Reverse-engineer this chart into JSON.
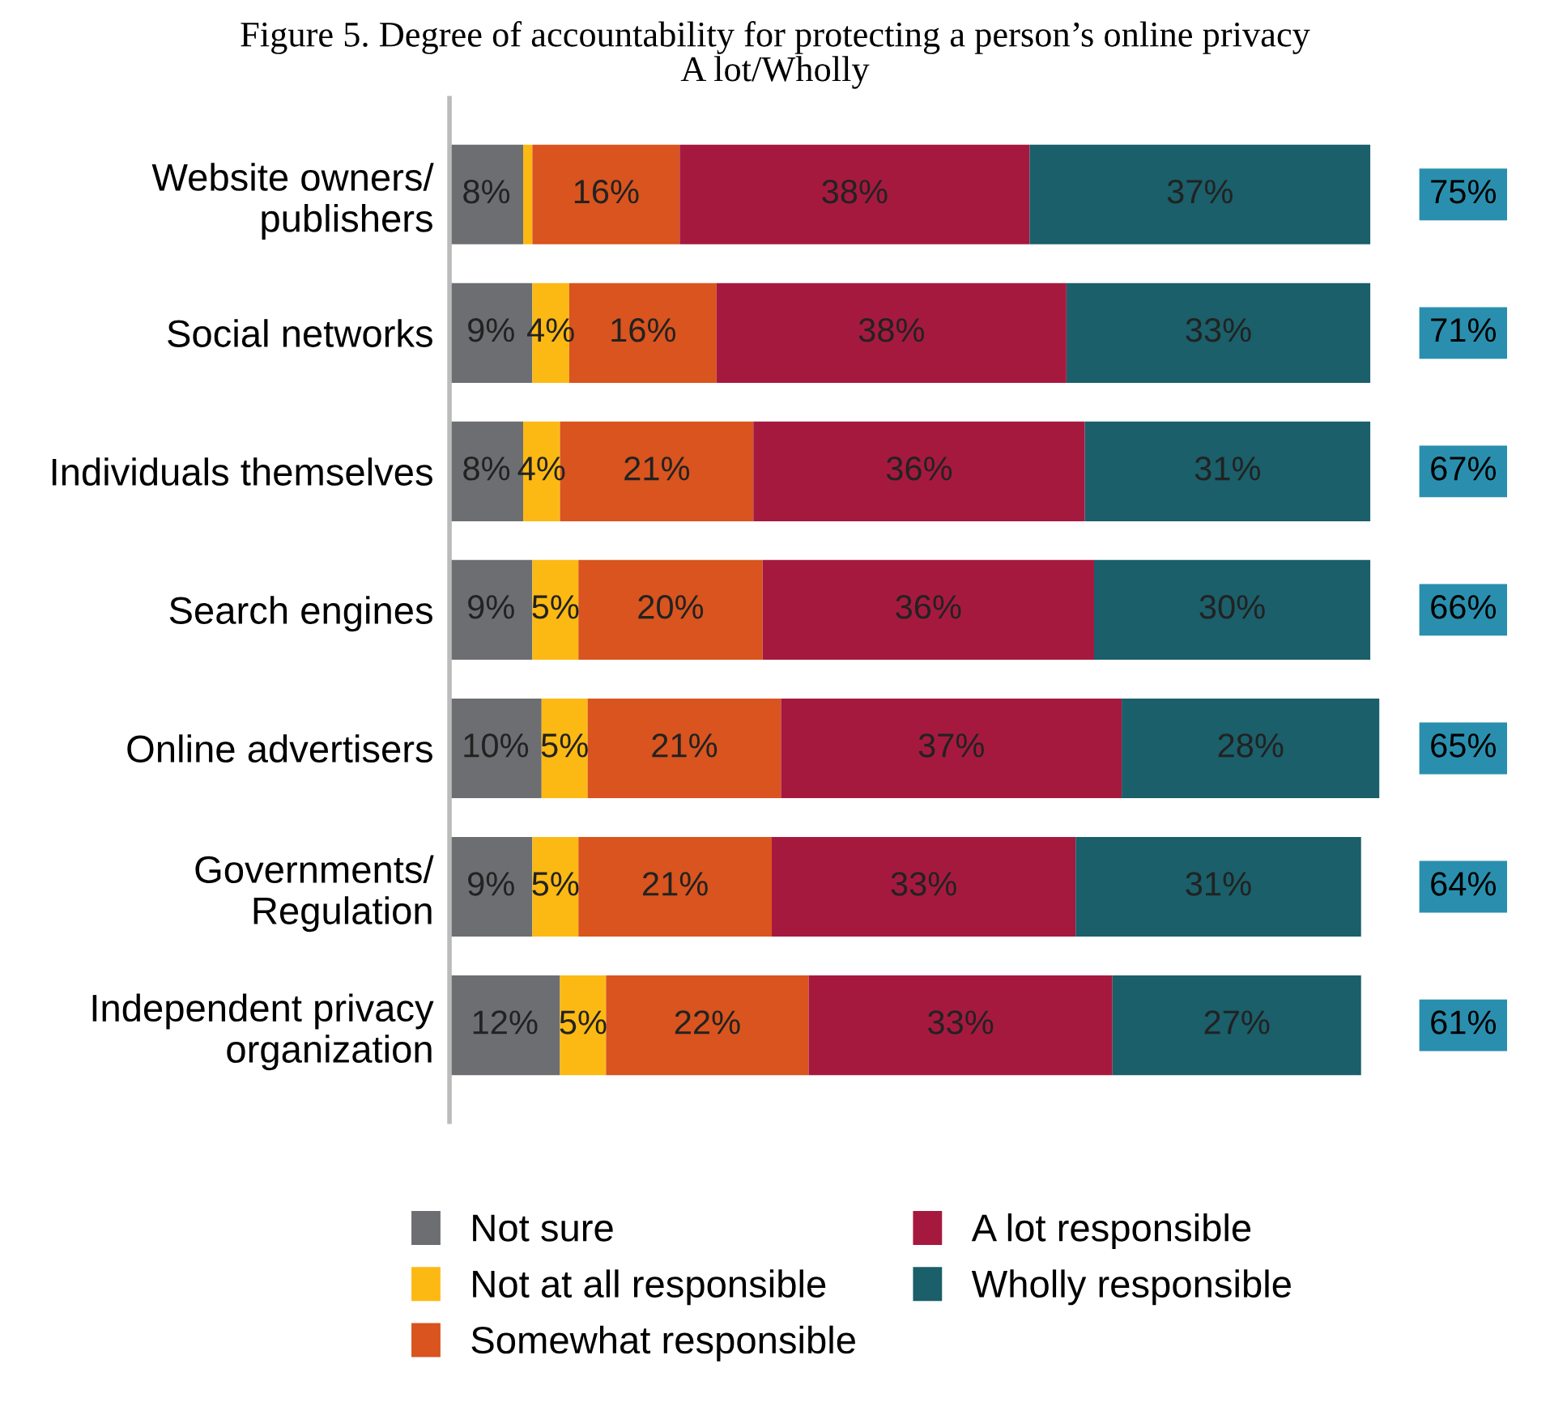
{
  "chart_data": {
    "type": "bar",
    "orientation": "horizontal",
    "stacked": true,
    "title": "Figure 5. Degree of accountability for protecting a person’s online privacy",
    "subtitle": "A lot/Wholly",
    "categories": [
      "Website owners/\npublishers",
      "Social networks",
      "Individuals themselves",
      "Search engines",
      "Online advertisers",
      "Governments/\nRegulation",
      "Independent privacy\norganization"
    ],
    "series": [
      {
        "name": "Not sure",
        "color": "#6d6e71",
        "values": [
          8,
          9,
          8,
          9,
          10,
          9,
          12
        ],
        "value_labels": [
          "8%",
          "9%",
          "8%",
          "9%",
          "10%",
          "9%",
          "12%"
        ]
      },
      {
        "name": "Not at all responsible",
        "color": "#fdb913",
        "values": [
          1,
          4,
          4,
          5,
          5,
          5,
          5
        ],
        "value_labels": [
          null,
          "4%",
          "4%",
          "5%",
          "5%",
          "5%",
          "5%"
        ]
      },
      {
        "name": "Somewhat responsible",
        "color": "#d9541e",
        "values": [
          16,
          16,
          21,
          20,
          21,
          21,
          22
        ],
        "value_labels": [
          "16%",
          "16%",
          "21%",
          "20%",
          "21%",
          "21%",
          "22%"
        ]
      },
      {
        "name": "A lot responsible",
        "color": "#a6193f",
        "values": [
          38,
          38,
          36,
          36,
          37,
          33,
          33
        ],
        "value_labels": [
          "38%",
          "38%",
          "36%",
          "36%",
          "37%",
          "33%",
          "33%"
        ]
      },
      {
        "name": "Wholly responsible",
        "color": "#1a5f6a",
        "values": [
          37,
          33,
          31,
          30,
          28,
          31,
          27
        ],
        "value_labels": [
          "37%",
          "33%",
          "31%",
          "30%",
          "28%",
          "31%",
          "27%"
        ]
      }
    ],
    "annotations": [
      "75%",
      "71%",
      "67%",
      "66%",
      "65%",
      "64%",
      "61%"
    ],
    "legend": "bottom",
    "grid": false
  }
}
